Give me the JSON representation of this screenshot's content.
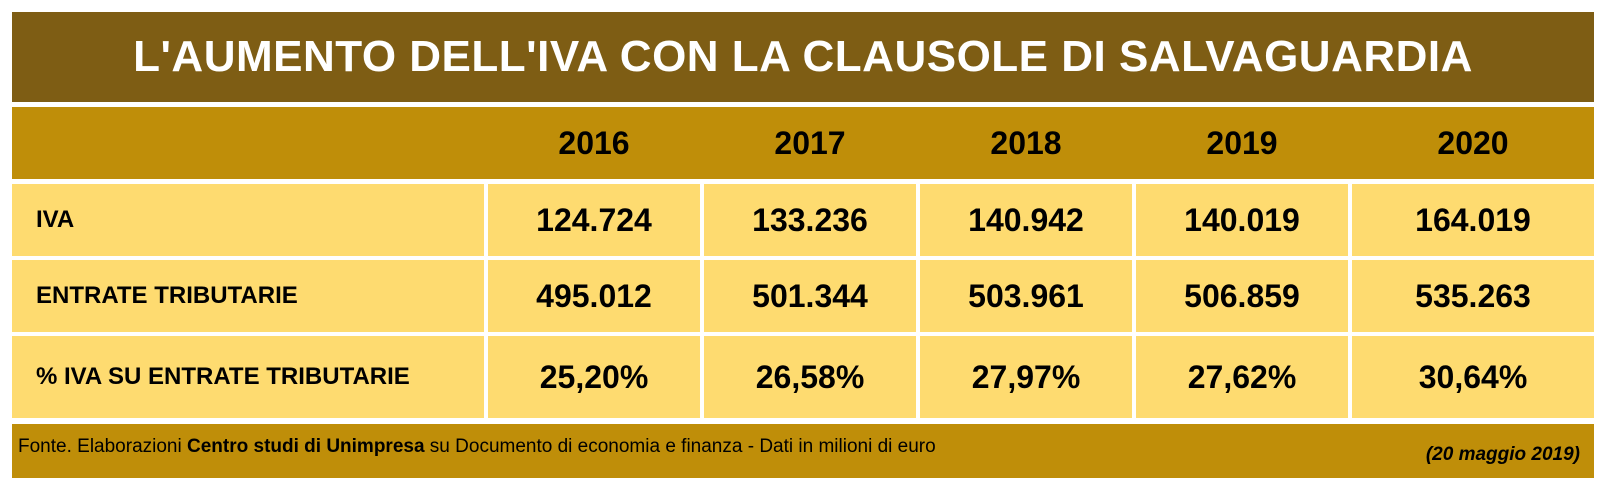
{
  "title": "L'AUMENTO DELL'IVA CON LA CLAUSOLE DI SALVAGUARDIA",
  "years": [
    "2016",
    "2017",
    "2018",
    "2019",
    "2020"
  ],
  "rows": [
    {
      "label": "IVA",
      "values": [
        "124.724",
        "133.236",
        "140.942",
        "140.019",
        "164.019"
      ]
    },
    {
      "label": "ENTRATE TRIBUTARIE",
      "values": [
        "495.012",
        "501.344",
        "503.961",
        "506.859",
        "535.263"
      ]
    },
    {
      "label": "% IVA SU ENTRATE TRIBUTARIE",
      "values": [
        "25,20%",
        "26,58%",
        "27,97%",
        "27,62%",
        "30,64%"
      ]
    }
  ],
  "footer": {
    "source_prefix": "Fonte. Elaborazioni ",
    "source_bold": "Centro studi di Unimpresa",
    "source_suffix": " su Documento di economia e finanza - Dati in milioni di euro",
    "date": "(20 maggio 2019)"
  },
  "colors": {
    "title_bg": "#7e5d14",
    "header_bg": "#bf8e09",
    "cell_bg": "#fedb70",
    "title_text": "#ffffff"
  }
}
